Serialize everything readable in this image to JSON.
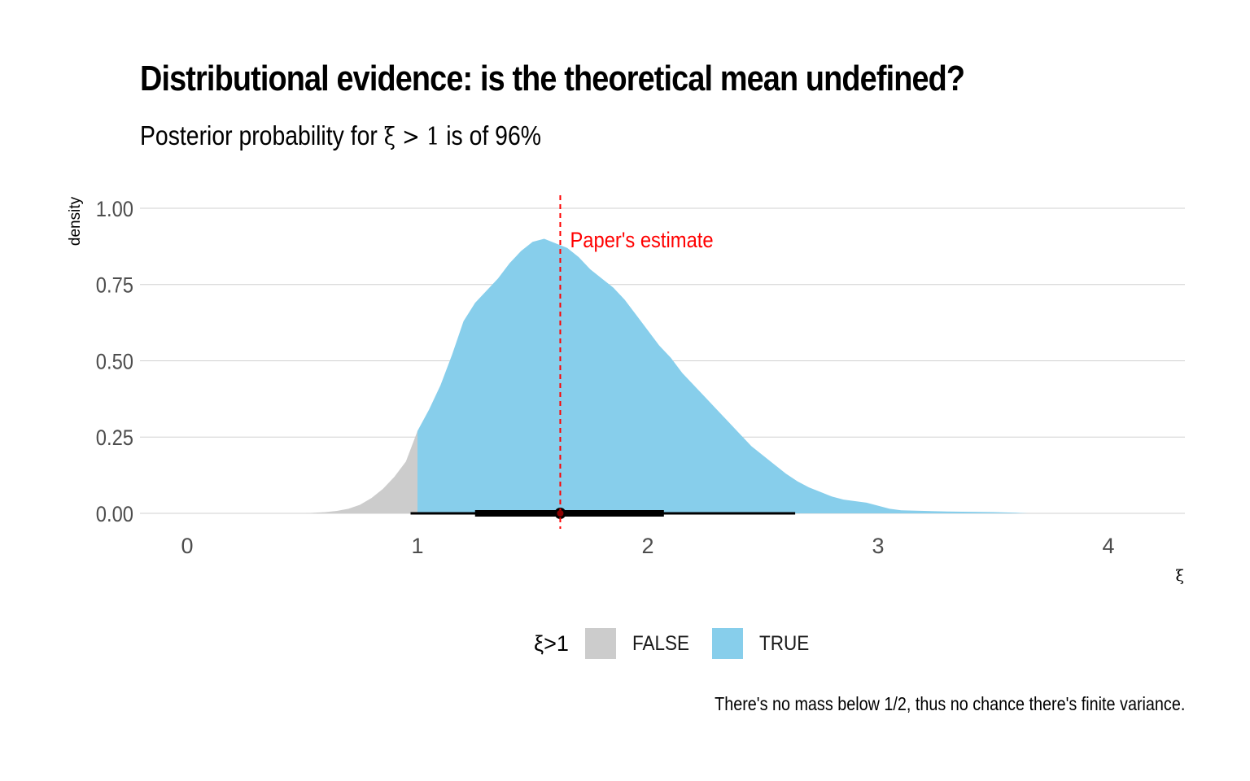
{
  "title": "Distributional evidence: is the theoretical mean undefined?",
  "subtitle_prefix": "Posterior probability for ",
  "subtitle_math": "ξ > 1",
  "subtitle_suffix": " is of 96%",
  "caption": "There's no mass below 1/2, thus no chance there's finite variance.",
  "legend": {
    "title": "ξ>1",
    "items": [
      {
        "label": "FALSE",
        "color": "#cccccc"
      },
      {
        "label": "TRUE",
        "color": "#87ceeb"
      }
    ]
  },
  "chart_data": {
    "type": "area",
    "xlabel": "ξ",
    "ylabel": "density",
    "xlim": [
      -0.2,
      4.3
    ],
    "ylim": [
      0,
      1.0
    ],
    "x_ticks": [
      "0",
      "1",
      "2",
      "3",
      "4"
    ],
    "y_ticks": [
      "0.00",
      "0.25",
      "0.50",
      "0.75",
      "1.00"
    ],
    "grid": "horizontal",
    "legend_position": "bottom",
    "density": {
      "x": [
        0.5,
        0.55,
        0.6,
        0.65,
        0.7,
        0.75,
        0.8,
        0.85,
        0.9,
        0.95,
        1.0,
        1.05,
        1.1,
        1.15,
        1.2,
        1.25,
        1.3,
        1.35,
        1.4,
        1.45,
        1.5,
        1.55,
        1.6,
        1.65,
        1.7,
        1.75,
        1.8,
        1.85,
        1.9,
        1.95,
        2.0,
        2.05,
        2.1,
        2.15,
        2.2,
        2.25,
        2.3,
        2.35,
        2.4,
        2.45,
        2.5,
        2.55,
        2.6,
        2.65,
        2.7,
        2.75,
        2.8,
        2.85,
        2.9,
        2.95,
        3.0,
        3.05,
        3.1,
        3.2,
        3.3,
        3.4,
        3.5,
        3.6,
        3.65
      ],
      "y": [
        0.0,
        0.002,
        0.004,
        0.008,
        0.015,
        0.028,
        0.05,
        0.08,
        0.12,
        0.17,
        0.27,
        0.34,
        0.42,
        0.52,
        0.63,
        0.69,
        0.73,
        0.77,
        0.82,
        0.86,
        0.89,
        0.9,
        0.885,
        0.87,
        0.84,
        0.8,
        0.77,
        0.74,
        0.7,
        0.65,
        0.6,
        0.55,
        0.51,
        0.46,
        0.42,
        0.38,
        0.34,
        0.3,
        0.26,
        0.22,
        0.19,
        0.16,
        0.13,
        0.105,
        0.085,
        0.07,
        0.055,
        0.045,
        0.04,
        0.035,
        0.025,
        0.015,
        0.01,
        0.008,
        0.006,
        0.005,
        0.004,
        0.002,
        0.0
      ]
    },
    "fill_split_x": 1.0,
    "series": [
      {
        "name": "FALSE",
        "color": "#cccccc",
        "range": "ξ ≤ 1"
      },
      {
        "name": "TRUE",
        "color": "#87ceeb",
        "range": "ξ > 1"
      }
    ],
    "point_interval": {
      "point": 1.62,
      "inner": [
        1.25,
        2.07
      ],
      "outer": [
        0.97,
        2.64
      ]
    },
    "reference_line": {
      "x": 1.62,
      "label": "Paper's estimate",
      "color": "#ff0000",
      "style": "dashed"
    }
  }
}
